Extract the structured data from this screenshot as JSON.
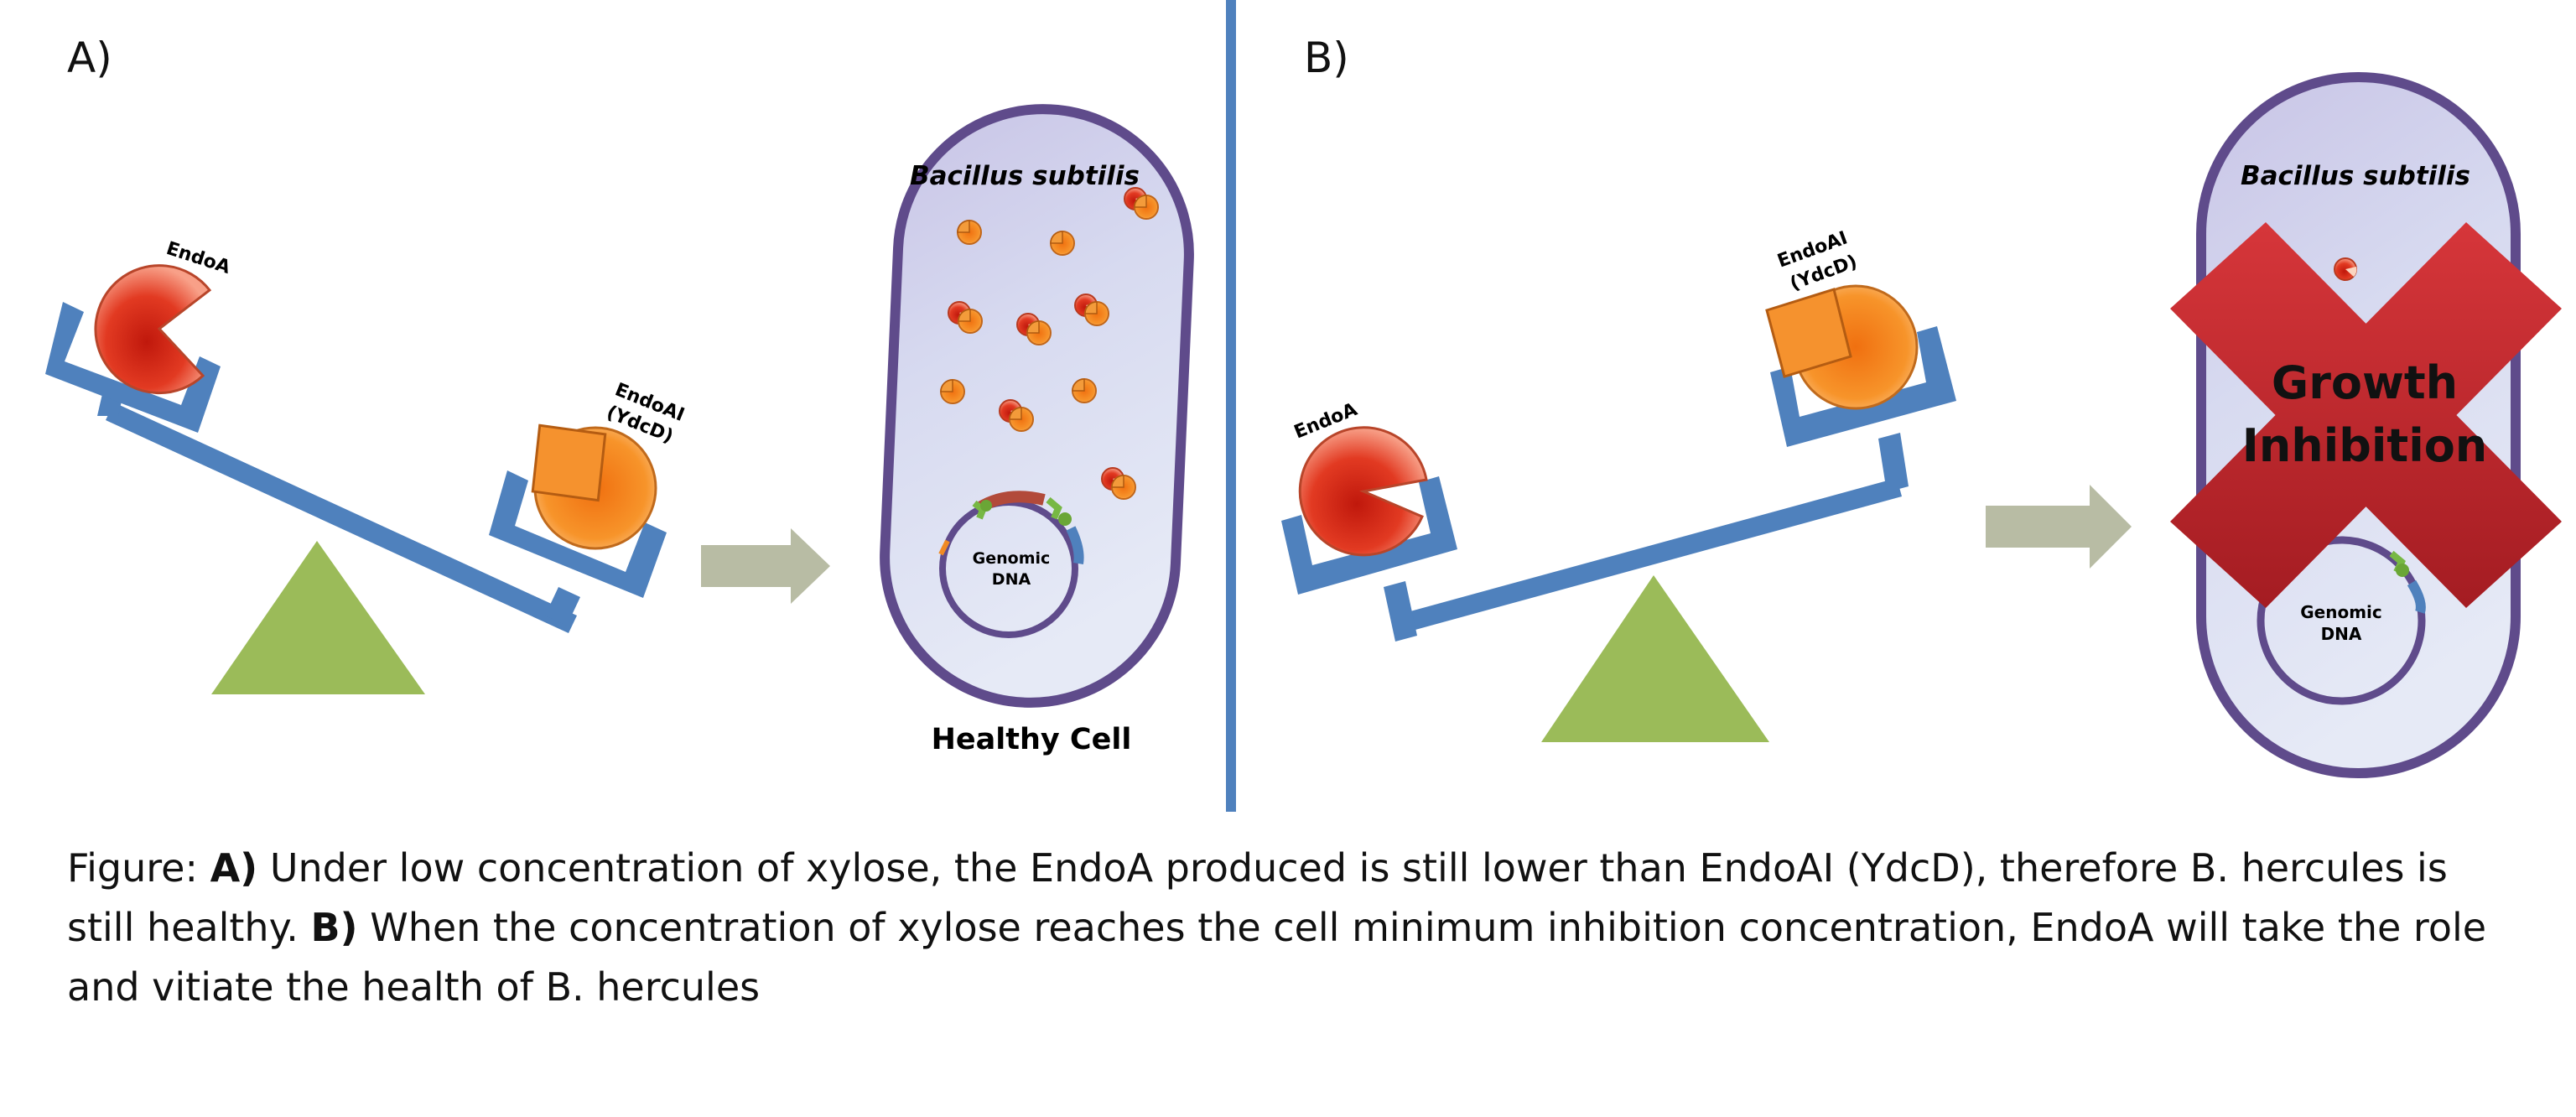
{
  "panels": {
    "a": {
      "letter": "A)",
      "endoa_label": "EndoA",
      "endoai_label_1": "EndoAI",
      "endoai_label_2": "(YdcD)",
      "cell_title": "Bacillus subtilis",
      "dna_label_1": "Genomic",
      "dna_label_2": "DNA",
      "cell_status": "Healthy Cell"
    },
    "b": {
      "letter": "B)",
      "endoa_label": "EndoA",
      "endoai_label_1": "EndoAI",
      "endoai_label_2": "(YdcD)",
      "cell_title": "Bacillus subtilis",
      "dna_label_1": "Genomic",
      "dna_label_2": "DNA",
      "inhibition_1": "Growth",
      "inhibition_2": "Inhibition"
    }
  },
  "caption": {
    "prefix": "Figure: ",
    "a_marker": "A)",
    "a_text": " Under low concentration of xylose, the EndoA produced is still lower than EndoAI (YdcD), therefore B. hercules is still healthy. ",
    "b_marker": "B)",
    "b_text": " When the concentration of xylose reaches the cell minimum inhibition concentration, EndoA will take the role and vitiate the health of B. hercules"
  },
  "colors": {
    "scale_blue": "#4f81bd",
    "fulcrum_green": "#9bbb59",
    "arrow_gray": "#b8bca4",
    "cell_border": "#5f4b8b",
    "cross_red": "#c0272d"
  }
}
